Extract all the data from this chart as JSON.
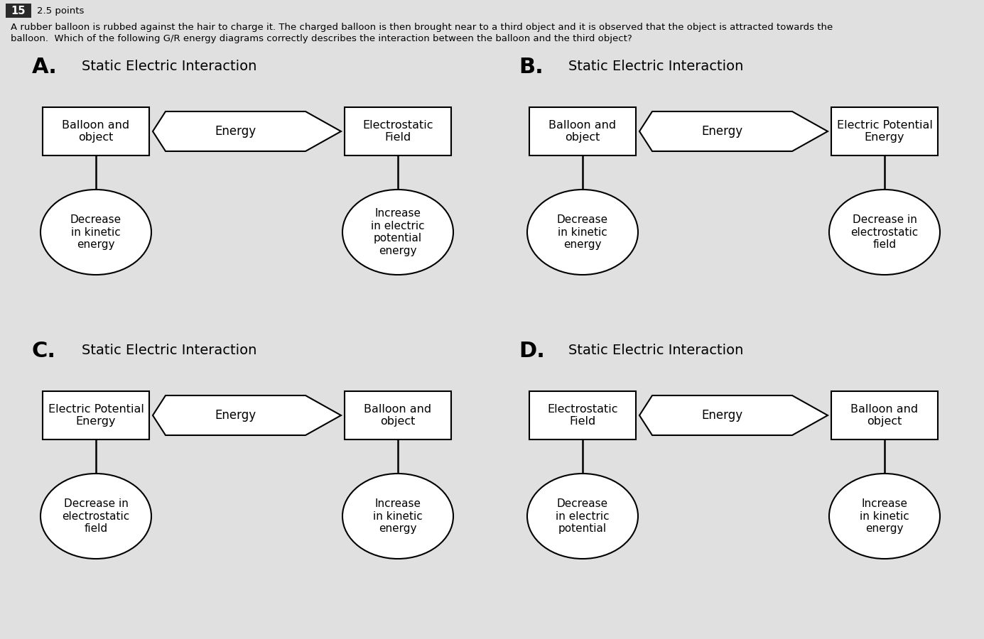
{
  "bg_color": "#e0e0e0",
  "question_number": "15",
  "points": "2.5 points",
  "question_text_line1": "A rubber balloon is rubbed against the hair to charge it. The charged balloon is then brought near to a third object and it is observed that the object is attracted towards the",
  "question_text_line2": "balloon.  Which of the following G/R energy diagrams correctly describes the interaction between the balloon and the third object?",
  "diagrams": [
    {
      "label": "A.",
      "title": "Static Electric Interaction",
      "left_box": "Balloon and\nobject",
      "arrow_label": "Energy",
      "right_box": "Electrostatic\nField",
      "left_circle": "Decrease\nin kinetic\nenergy",
      "right_circle": "Increase\nin electric\npotential\nenergy"
    },
    {
      "label": "B.",
      "title": "Static Electric Interaction",
      "left_box": "Balloon and\nobject",
      "arrow_label": "Energy",
      "right_box": "Electric Potential\nEnergy",
      "left_circle": "Decrease\nin kinetic\nenergy",
      "right_circle": "Decrease in\nelectrostatic\nfield"
    },
    {
      "label": "C.",
      "title": "Static Electric Interaction",
      "left_box": "Electric Potential\nEnergy",
      "arrow_label": "Energy",
      "right_box": "Balloon and\nobject",
      "left_circle": "Decrease in\nelectrostatic\nfield",
      "right_circle": "Increase\nin kinetic\nenergy"
    },
    {
      "label": "D.",
      "title": "Static Electric Interaction",
      "left_box": "Electrostatic\nField",
      "arrow_label": "Energy",
      "right_box": "Balloon and\nobject",
      "left_circle": "Decrease\nin electric\npotential",
      "right_circle": "Increase\nin kinetic\nenergy"
    }
  ]
}
